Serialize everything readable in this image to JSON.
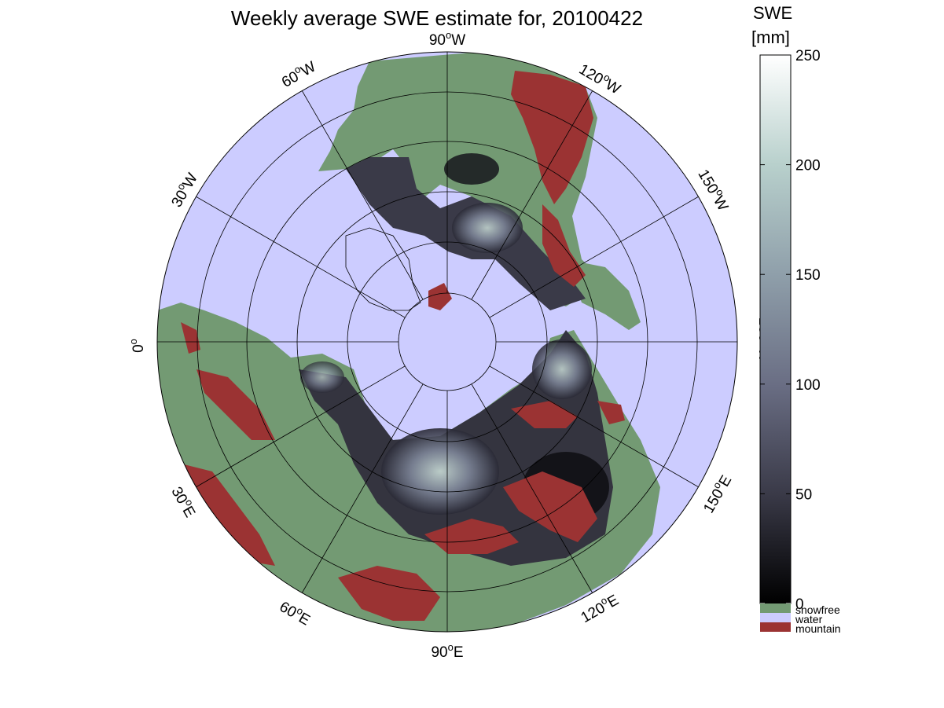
{
  "title": "Weekly average SWE estimate for, 20100422",
  "colorbar": {
    "label_line1": "SWE",
    "label_line2": "[mm]",
    "ticks": [
      0,
      50,
      100,
      150,
      200,
      250
    ],
    "min": 0,
    "max": 250,
    "gradient_stops": [
      "#000000",
      "#3a3a48",
      "#6a6e84",
      "#8f9faa",
      "#b8d0cc",
      "#ffffff"
    ]
  },
  "legend": [
    {
      "label": "snowfree",
      "color": "#739a73"
    },
    {
      "label": "water",
      "color": "#ccccff"
    },
    {
      "label": "mountain",
      "color": "#9b3333"
    }
  ],
  "map": {
    "projection": "north polar stereographic",
    "water_color": "#ccccff",
    "land_color": "#739a73",
    "mountain_color": "#9b3333",
    "meridian_labels": [
      {
        "deg": "90",
        "dir": "W"
      },
      {
        "deg": "60",
        "dir": "W"
      },
      {
        "deg": "120",
        "dir": "W"
      },
      {
        "deg": "30",
        "dir": "W"
      },
      {
        "deg": "150",
        "dir": "W"
      },
      {
        "deg": "0",
        "dir": ""
      },
      {
        "deg": "180",
        "dir": "W"
      },
      {
        "deg": "30",
        "dir": "E"
      },
      {
        "deg": "150",
        "dir": "E"
      },
      {
        "deg": "60",
        "dir": "E"
      },
      {
        "deg": "120",
        "dir": "E"
      },
      {
        "deg": "90",
        "dir": "E"
      }
    ]
  }
}
